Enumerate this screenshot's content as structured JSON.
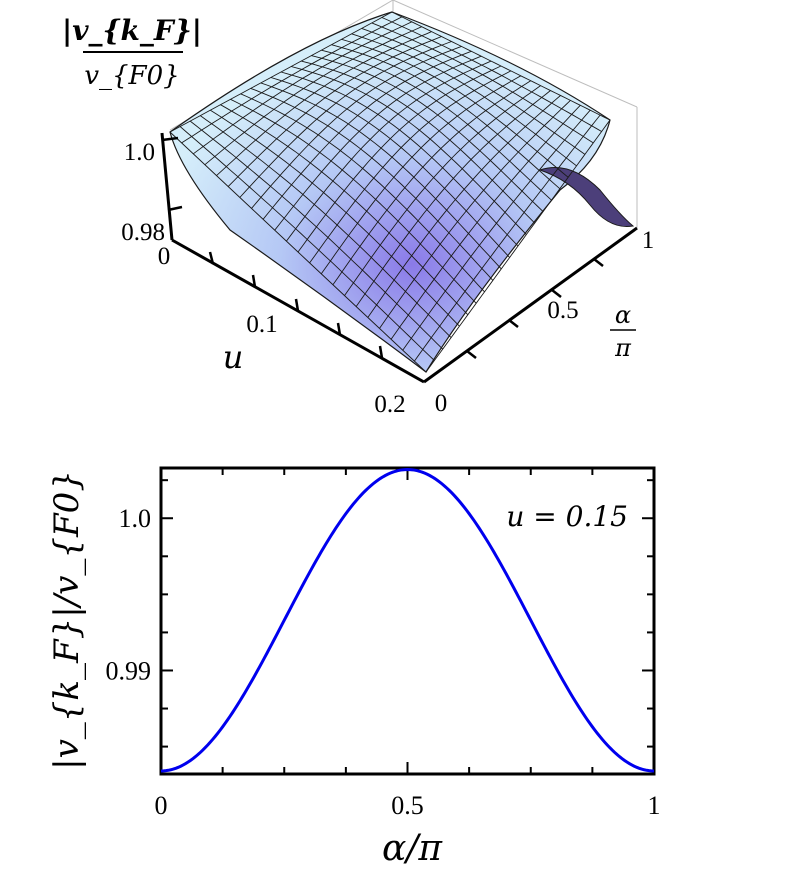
{
  "chart_data": [
    {
      "type": "surface",
      "z_label_numerator": "|v_{k_F}|",
      "z_label_denominator": "v_{F0}",
      "z_ticks": [
        "1.0",
        "0.98"
      ],
      "u_axis": {
        "label": "u",
        "ticks": [
          "0",
          "0.1",
          "0.2"
        ],
        "range": [
          0,
          0.2
        ]
      },
      "alpha_axis": {
        "label_numerator": "α",
        "label_denominator": "π",
        "ticks": [
          "0",
          "0.5",
          "1"
        ],
        "range": [
          0,
          1
        ]
      },
      "z_range": [
        0.975,
        1.005
      ],
      "colors": {
        "surface": "#cfe9f7",
        "surface_dark": "#8a7ae8",
        "mesh": "#1a1a1a",
        "box": "#bdbdbd"
      }
    },
    {
      "type": "line",
      "xlabel": "α/π",
      "ylabel_main": "|v_{k_F}|/v_{F0}",
      "annotation": "u = 0.15",
      "xlim": [
        0,
        1
      ],
      "ylim": [
        0.9832,
        1.0033
      ],
      "x_ticks": [
        0,
        0.5,
        1
      ],
      "x_tick_labels": [
        "0",
        "0.5",
        "1"
      ],
      "y_ticks": [
        0.99,
        1.0
      ],
      "y_tick_labels": [
        "0.99",
        "1.0"
      ],
      "series": [
        {
          "color": "#0000ee",
          "x": [
            0,
            0.1,
            0.2,
            0.25,
            0.3,
            0.4,
            0.5,
            0.6,
            0.7,
            0.75,
            0.8,
            0.9,
            1.0
          ],
          "values": [
            0.9834,
            0.9853,
            0.9903,
            0.9933,
            0.9963,
            1.0012,
            1.0032,
            1.0012,
            0.9963,
            0.9933,
            0.9903,
            0.9853,
            0.9834
          ]
        }
      ]
    }
  ]
}
